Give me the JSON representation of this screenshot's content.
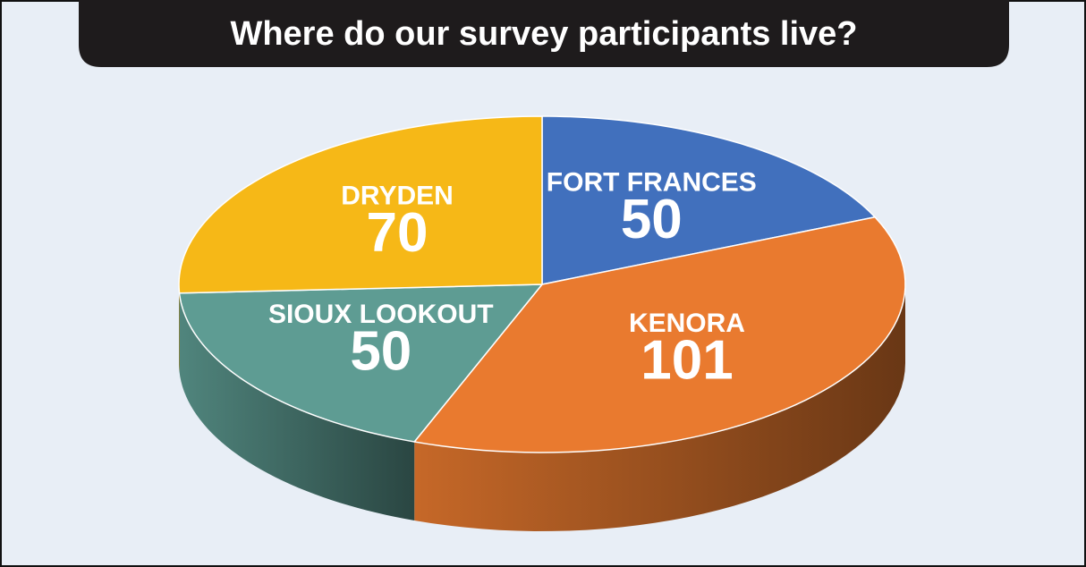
{
  "chart_data": {
    "type": "pie",
    "title": "Where do our survey participants live?",
    "categories": [
      "FORT FRANCES",
      "KENORA",
      "SIOUX LOOKOUT",
      "DRYDEN"
    ],
    "values": [
      50,
      101,
      50,
      70
    ],
    "colors": [
      "#4170bd",
      "#e97a2f",
      "#5e9c93",
      "#f6b817"
    ]
  }
}
